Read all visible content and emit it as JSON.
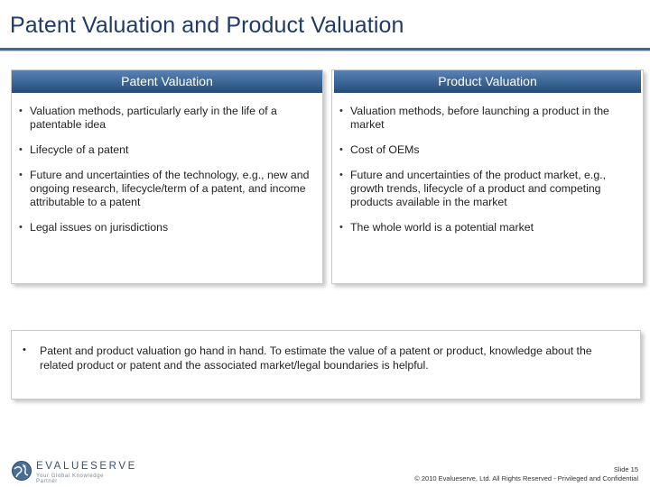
{
  "slide": {
    "title": "Patent Valuation and Product Valuation"
  },
  "left_panel": {
    "heading": "Patent Valuation",
    "bullets": [
      "Valuation methods, particularly early in the life of a patentable idea",
      "Lifecycle of a patent",
      "Future and uncertainties of the technology, e.g., new and ongoing research, lifecycle/term of a patent, and income attributable to a patent",
      "Legal issues on jurisdictions"
    ]
  },
  "right_panel": {
    "heading": "Product Valuation",
    "bullets": [
      "Valuation methods, before launching a product in the market",
      "Cost of OEMs",
      "Future and uncertainties of the product market, e.g., growth trends, lifecycle of a product and competing products available in the market",
      "The whole world is a potential market"
    ]
  },
  "summary": {
    "text": "Patent and product valuation go hand in hand. To estimate the value of a patent or product, knowledge about the related product or patent and the associated market/legal boundaries is helpful."
  },
  "footer": {
    "logo_name": "EVALUESERVE",
    "logo_tagline": "Your Global Knowledge Partner",
    "slide_number": "Slide 15",
    "copyright": "© 2010 Evalueserve, Ltd. All Rights Reserved - Privileged and Confidential"
  },
  "colors": {
    "title": "#1f3a6b",
    "header_bar": "#3f6a9a",
    "logo_mark": "#4a6d96"
  }
}
